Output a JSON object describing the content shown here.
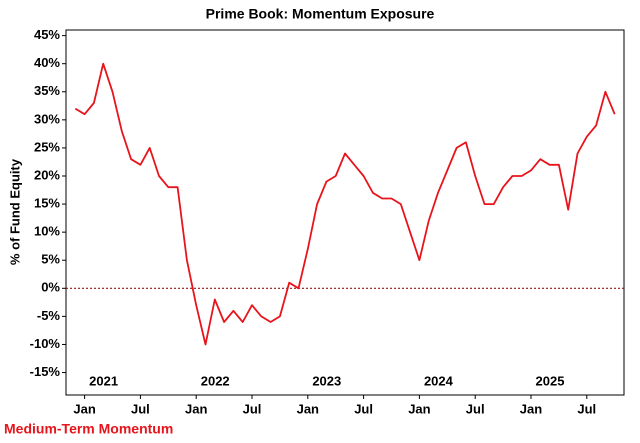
{
  "chart_data": {
    "type": "line",
    "title": "Prime Book: Momentum Exposure",
    "ylabel": "% of Fund Equity",
    "x": [
      "2020-12",
      "2021-01",
      "2021-02",
      "2021-03",
      "2021-04",
      "2021-05",
      "2021-06",
      "2021-07",
      "2021-08",
      "2021-09",
      "2021-10",
      "2021-11",
      "2021-12",
      "2022-01",
      "2022-02",
      "2022-03",
      "2022-04",
      "2022-05",
      "2022-06",
      "2022-07",
      "2022-08",
      "2022-09",
      "2022-10",
      "2022-11",
      "2022-12",
      "2023-01",
      "2023-02",
      "2023-03",
      "2023-04",
      "2023-05",
      "2023-06",
      "2023-07",
      "2023-08",
      "2023-09",
      "2023-10",
      "2023-11",
      "2023-12",
      "2024-01",
      "2024-02",
      "2024-03",
      "2024-04",
      "2024-05",
      "2024-06",
      "2024-07",
      "2024-08",
      "2024-09",
      "2024-10",
      "2024-11",
      "2024-12",
      "2025-01",
      "2025-02",
      "2025-03",
      "2025-04",
      "2025-05",
      "2025-06",
      "2025-07",
      "2025-08",
      "2025-09",
      "2025-10"
    ],
    "series": [
      {
        "name": "Medium-Term Momentum",
        "color": "#e8141b",
        "values": [
          32,
          31,
          33,
          40,
          35,
          28,
          23,
          22,
          25,
          20,
          18,
          18,
          5,
          -3,
          -10,
          -2,
          -6,
          -4,
          -6,
          -3,
          -5,
          -6,
          -5,
          1,
          0,
          7,
          15,
          19,
          20,
          24,
          22,
          20,
          17,
          16,
          16,
          15,
          10,
          5,
          12,
          17,
          21,
          25,
          26,
          20,
          15,
          15,
          18,
          20,
          20,
          21,
          23,
          22,
          22,
          14,
          24,
          27,
          29,
          35,
          31
        ]
      }
    ],
    "xlim": [
      "2020-11",
      "2025-11"
    ],
    "xticks": [
      {
        "value": "2021-01",
        "label": "Jan"
      },
      {
        "value": "2021-07",
        "label": "Jul"
      },
      {
        "value": "2022-01",
        "label": "Jan"
      },
      {
        "value": "2022-07",
        "label": "Jul"
      },
      {
        "value": "2023-01",
        "label": "Jan"
      },
      {
        "value": "2023-07",
        "label": "Jul"
      },
      {
        "value": "2024-01",
        "label": "Jan"
      },
      {
        "value": "2024-07",
        "label": "Jul"
      },
      {
        "value": "2025-01",
        "label": "Jan"
      },
      {
        "value": "2025-07",
        "label": "Jul"
      }
    ],
    "years": [
      {
        "value": "2021-01",
        "label": "2021"
      },
      {
        "value": "2022-01",
        "label": "2022"
      },
      {
        "value": "2023-01",
        "label": "2023"
      },
      {
        "value": "2024-01",
        "label": "2024"
      },
      {
        "value": "2025-01",
        "label": "2025"
      }
    ],
    "ylim": [
      -19,
      46
    ],
    "yticks": [
      {
        "value": -15,
        "label": "-15%"
      },
      {
        "value": -10,
        "label": "-10%"
      },
      {
        "value": -5,
        "label": "-5%"
      },
      {
        "value": 0,
        "label": "0%"
      },
      {
        "value": 5,
        "label": "5%"
      },
      {
        "value": 10,
        "label": "10%"
      },
      {
        "value": 15,
        "label": "15%"
      },
      {
        "value": 20,
        "label": "20%"
      },
      {
        "value": 25,
        "label": "25%"
      },
      {
        "value": 30,
        "label": "30%"
      },
      {
        "value": 35,
        "label": "35%"
      },
      {
        "value": 40,
        "label": "40%"
      },
      {
        "value": 45,
        "label": "45%"
      }
    ],
    "hline": 0,
    "hline_color": "#8b1a1a",
    "grid": false
  }
}
